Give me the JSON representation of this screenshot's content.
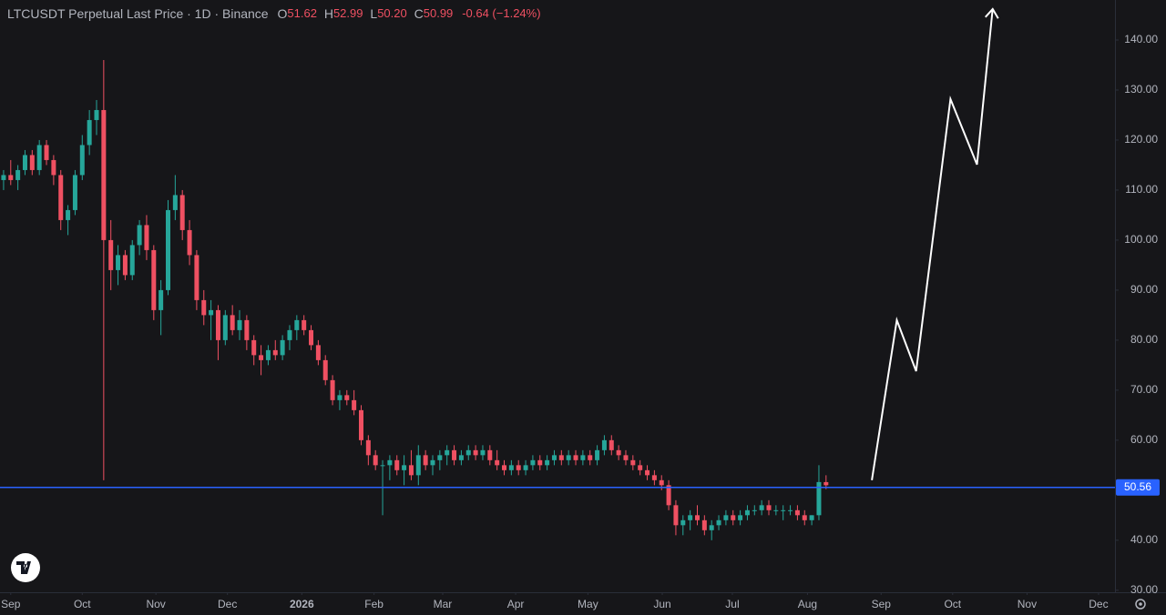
{
  "chart_data": {
    "type": "candlestick",
    "title": "LTCUSDT Perpetual Last Price · 1D · Binance",
    "ohlc_legend": [
      {
        "label": "O",
        "value": "51.62"
      },
      {
        "label": "H",
        "value": "52.99"
      },
      {
        "label": "L",
        "value": "50.20"
      },
      {
        "label": "C",
        "value": "50.99"
      }
    ],
    "change": "-0.64 (−1.24%)",
    "up_color": "#26a69a",
    "down_color": "#ef5062",
    "categories": [
      null,
      null,
      null,
      null,
      null,
      null,
      null,
      null,
      null,
      null,
      null,
      null,
      null,
      null,
      null,
      null,
      null,
      null,
      null,
      null,
      null,
      null,
      null,
      null,
      null,
      null,
      null,
      null,
      null,
      null,
      null,
      null,
      null,
      null,
      null,
      null,
      null,
      null,
      null,
      null,
      null,
      null,
      null,
      null,
      null,
      null,
      null,
      null,
      null,
      null,
      null,
      null,
      null,
      null,
      null,
      null,
      null,
      null,
      null,
      null,
      null,
      null,
      null,
      null,
      null,
      null,
      null,
      null,
      null,
      null,
      null,
      null,
      null,
      null,
      null,
      null,
      null,
      null,
      null,
      null,
      null,
      null,
      null,
      null,
      null,
      null,
      null,
      null,
      null,
      null,
      null,
      null,
      null,
      null,
      null,
      null,
      null,
      null,
      null,
      null,
      null,
      null,
      null,
      null,
      null,
      null,
      null,
      null,
      null,
      null,
      null,
      null,
      null,
      null,
      null,
      null,
      null,
      null,
      null,
      null,
      null
    ],
    "ohlc": [
      [
        112,
        114,
        110,
        113
      ],
      [
        113,
        116,
        111,
        112
      ],
      [
        112,
        115,
        110,
        114
      ],
      [
        114,
        118,
        113,
        117
      ],
      [
        117,
        118,
        113,
        114
      ],
      [
        114,
        120,
        113,
        119
      ],
      [
        119,
        120,
        115,
        116
      ],
      [
        116,
        117,
        111,
        113
      ],
      [
        113,
        114,
        102,
        104
      ],
      [
        104,
        107,
        101,
        106
      ],
      [
        106,
        114,
        105,
        113
      ],
      [
        113,
        121,
        112,
        119
      ],
      [
        119,
        126,
        117,
        124
      ],
      [
        124,
        128,
        121,
        126
      ],
      [
        126,
        136,
        52,
        100
      ],
      [
        100,
        104,
        90,
        94
      ],
      [
        94,
        99,
        91,
        97
      ],
      [
        97,
        98,
        92,
        93
      ],
      [
        93,
        100,
        92,
        99
      ],
      [
        99,
        104,
        97,
        103
      ],
      [
        103,
        105,
        96,
        98
      ],
      [
        98,
        99,
        84,
        86
      ],
      [
        86,
        92,
        81,
        90
      ],
      [
        90,
        108,
        89,
        106
      ],
      [
        106,
        113,
        104,
        109
      ],
      [
        109,
        110,
        100,
        102
      ],
      [
        102,
        104,
        95,
        97
      ],
      [
        97,
        98,
        86,
        88
      ],
      [
        88,
        90,
        83,
        85
      ],
      [
        85,
        88,
        80,
        86
      ],
      [
        86,
        87,
        76,
        80
      ],
      [
        80,
        86,
        79,
        85
      ],
      [
        85,
        87,
        81,
        82
      ],
      [
        82,
        86,
        80,
        84
      ],
      [
        84,
        85,
        78,
        80
      ],
      [
        80,
        81,
        75,
        77
      ],
      [
        77,
        79,
        73,
        76
      ],
      [
        76,
        79,
        75,
        78
      ],
      [
        78,
        80,
        76,
        77
      ],
      [
        77,
        81,
        76,
        80
      ],
      [
        80,
        83,
        78,
        82
      ],
      [
        82,
        85,
        80,
        84
      ],
      [
        84,
        85,
        81,
        82
      ],
      [
        82,
        83,
        78,
        79
      ],
      [
        79,
        80,
        75,
        76
      ],
      [
        76,
        77,
        71,
        72
      ],
      [
        72,
        73,
        67,
        68
      ],
      [
        68,
        70,
        66,
        69
      ],
      [
        69,
        70,
        67,
        68
      ],
      [
        68,
        70,
        65,
        66
      ],
      [
        66,
        67,
        59,
        60
      ],
      [
        60,
        61,
        55,
        57
      ],
      [
        57,
        58,
        54,
        55
      ],
      [
        55,
        56,
        45,
        55
      ],
      [
        55,
        57,
        52,
        56
      ],
      [
        56,
        57,
        53,
        54
      ],
      [
        54,
        57,
        51,
        55
      ],
      [
        55,
        58,
        52,
        53
      ],
      [
        53,
        59,
        51,
        57
      ],
      [
        57,
        58,
        54,
        55
      ],
      [
        55,
        57,
        53,
        56
      ],
      [
        56,
        58,
        54,
        57
      ],
      [
        57,
        59,
        55,
        58
      ],
      [
        58,
        59,
        55,
        56
      ],
      [
        56,
        58,
        55,
        57
      ],
      [
        57,
        59,
        56,
        58
      ],
      [
        58,
        59,
        56,
        57
      ],
      [
        57,
        59,
        56,
        58
      ],
      [
        58,
        59,
        55,
        56
      ],
      [
        56,
        58,
        54,
        55
      ],
      [
        55,
        56,
        53,
        54
      ],
      [
        54,
        56,
        53,
        55
      ],
      [
        55,
        56,
        53,
        54
      ],
      [
        54,
        56,
        53,
        55
      ],
      [
        55,
        57,
        54,
        56
      ],
      [
        56,
        57,
        54,
        55
      ],
      [
        55,
        57,
        54,
        56
      ],
      [
        56,
        58,
        55,
        57
      ],
      [
        57,
        58,
        55,
        56
      ],
      [
        56,
        58,
        55,
        57
      ],
      [
        57,
        58,
        55,
        56
      ],
      [
        56,
        58,
        55,
        57
      ],
      [
        57,
        58,
        55,
        56
      ],
      [
        56,
        59,
        55,
        58
      ],
      [
        58,
        61,
        57,
        60
      ],
      [
        60,
        61,
        57,
        58
      ],
      [
        58,
        59,
        56,
        57
      ],
      [
        57,
        58,
        55,
        56
      ],
      [
        56,
        57,
        54,
        55
      ],
      [
        55,
        56,
        53,
        54
      ],
      [
        54,
        55,
        52,
        53
      ],
      [
        53,
        54,
        51,
        52
      ],
      [
        52,
        53,
        50,
        51
      ],
      [
        51,
        52,
        46,
        47
      ],
      [
        47,
        48,
        41,
        43
      ],
      [
        43,
        45,
        41,
        44
      ],
      [
        44,
        46,
        42,
        45
      ],
      [
        45,
        47,
        43,
        44
      ],
      [
        44,
        45,
        41,
        42
      ],
      [
        42,
        44,
        40,
        43
      ],
      [
        43,
        45,
        42,
        44
      ],
      [
        44,
        46,
        43,
        45
      ],
      [
        45,
        46,
        43,
        44
      ],
      [
        44,
        46,
        43,
        45
      ],
      [
        45,
        47,
        44,
        46
      ],
      [
        46,
        47,
        45,
        46
      ],
      [
        46,
        48,
        45,
        47
      ],
      [
        47,
        48,
        45,
        46
      ],
      [
        46,
        47,
        45,
        46
      ],
      [
        46,
        47,
        44,
        46
      ],
      [
        46,
        47,
        45,
        46
      ],
      [
        46,
        47,
        44,
        45
      ],
      [
        45,
        46,
        43,
        44
      ],
      [
        44,
        45,
        43,
        45
      ],
      [
        45,
        55,
        44,
        51.63
      ],
      [
        51.62,
        52.99,
        50.2,
        50.99
      ]
    ],
    "projection": {
      "x": [
        121.4,
        124.9,
        127.6,
        132.4,
        136.1,
        138.3
      ],
      "values": [
        52,
        84,
        73.8,
        128.2,
        115.1,
        146.2
      ],
      "color": "#ffffff"
    },
    "price_line": {
      "value": 50.56,
      "color": "#2962ff"
    },
    "xlim": [
      -0.5,
      155.4
    ],
    "ylim": [
      29.6,
      148
    ],
    "xticks": [
      {
        "value": 1.0,
        "label": "Sep"
      },
      {
        "value": 11.0,
        "label": "Oct"
      },
      {
        "value": 21.3,
        "label": "Nov"
      },
      {
        "value": 31.3,
        "label": "Dec"
      },
      {
        "value": 41.7,
        "label": "2026"
      },
      {
        "value": 51.8,
        "label": "Feb"
      },
      {
        "value": 61.4,
        "label": "Mar"
      },
      {
        "value": 71.6,
        "label": "Apr"
      },
      {
        "value": 81.7,
        "label": "May"
      },
      {
        "value": 92.1,
        "label": "Jun"
      },
      {
        "value": 101.9,
        "label": "Jul"
      },
      {
        "value": 112.4,
        "label": "Aug"
      },
      {
        "value": 122.7,
        "label": "Sep"
      },
      {
        "value": 132.7,
        "label": "Oct"
      },
      {
        "value": 143.1,
        "label": "Nov"
      },
      {
        "value": 153.1,
        "label": "Dec"
      }
    ],
    "yticks": [
      {
        "value": 30,
        "label": "30.00"
      },
      {
        "value": 40,
        "label": "40.00"
      },
      {
        "value": 50,
        "label": "50.00"
      },
      {
        "value": 60,
        "label": "60.00"
      },
      {
        "value": 70,
        "label": "70.00"
      },
      {
        "value": 80,
        "label": "80.00"
      },
      {
        "value": 90,
        "label": "90.00"
      },
      {
        "value": 100,
        "label": "100.00"
      },
      {
        "value": 110,
        "label": "110.00"
      },
      {
        "value": 120,
        "label": "120.00"
      },
      {
        "value": 130,
        "label": "130.00"
      },
      {
        "value": 140,
        "label": "140.00"
      }
    ]
  }
}
